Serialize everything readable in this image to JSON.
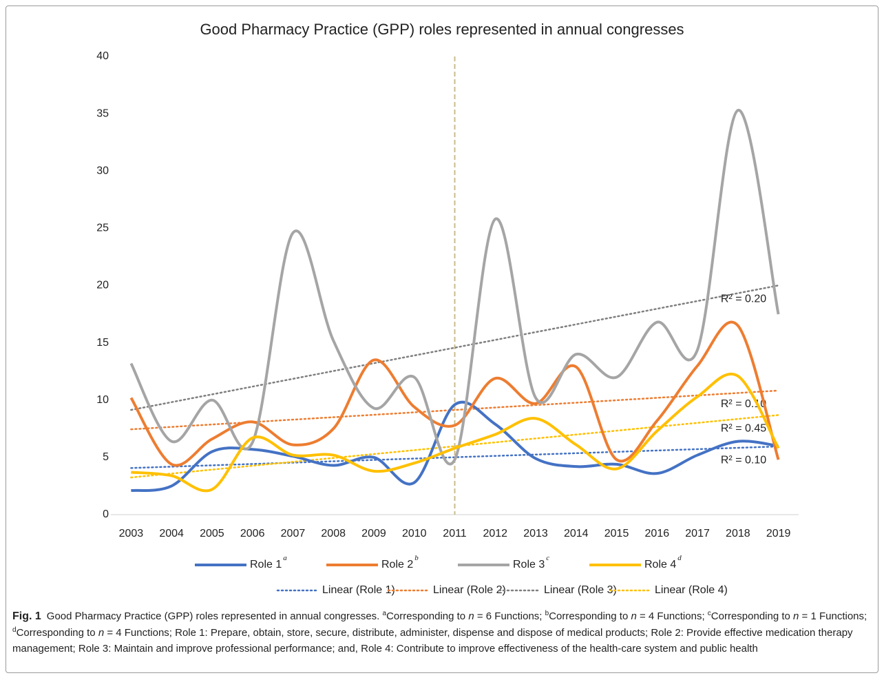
{
  "chart_data": {
    "type": "line",
    "title": "Good Pharmacy Practice (GPP) roles represented in annual congresses",
    "categories": [
      "2003",
      "2004",
      "2005",
      "2006",
      "2007",
      "2008",
      "2009",
      "2010",
      "2011",
      "2012",
      "2013",
      "2014",
      "2015",
      "2016",
      "2017",
      "2018",
      "2019"
    ],
    "ylim": [
      0,
      40
    ],
    "yticks": [
      0,
      5,
      10,
      15,
      20,
      25,
      30,
      35,
      40
    ],
    "grid": false,
    "smooth": true,
    "vertical_line_at": "2011",
    "vertical_line_color": "#c8bb8c",
    "series": [
      {
        "name": "Role 1",
        "superscript": "a",
        "color": "#4472c4",
        "values": [
          2.1,
          2.5,
          5.5,
          5.7,
          5.1,
          4.3,
          5.0,
          2.8,
          9.6,
          7.9,
          4.9,
          4.2,
          4.4,
          3.6,
          5.2,
          6.4,
          6.0
        ],
        "trendline": {
          "name": "Linear (Role 1)",
          "color": "#4472c4",
          "r2_label": "R² = 0.10"
        }
      },
      {
        "name": "Role 2",
        "superscript": "b",
        "color": "#ed7d31",
        "values": [
          10.2,
          4.4,
          6.6,
          8.1,
          6.1,
          7.5,
          13.5,
          9.4,
          7.8,
          11.9,
          9.7,
          12.9,
          4.8,
          8.2,
          13.0,
          16.5,
          4.8
        ],
        "trendline": {
          "name": "Linear (Role 2)",
          "color": "#ed7d31",
          "r2_label": "R² = 0.10"
        }
      },
      {
        "name": "Role 3",
        "superscript": "c",
        "color": "#a5a5a5",
        "values": [
          13.2,
          6.4,
          10.0,
          6.3,
          24.6,
          15.2,
          9.3,
          12.0,
          4.8,
          25.8,
          10.2,
          14.0,
          12.0,
          16.8,
          14.4,
          35.3,
          17.5
        ],
        "trendline": {
          "name": "Linear (Role 3)",
          "color": "#7f7f7f",
          "r2_label": "R² = 0.20"
        }
      },
      {
        "name": "Role 4",
        "superscript": "d",
        "color": "#ffc000",
        "values": [
          3.7,
          3.4,
          2.2,
          6.7,
          5.2,
          5.2,
          3.8,
          4.5,
          5.8,
          7.0,
          8.4,
          6.1,
          4.0,
          7.3,
          10.3,
          12.1,
          5.8
        ],
        "trendline": {
          "name": "Linear (Role 4)",
          "color": "#ffc000",
          "r2_label": "R² = 0.45"
        }
      }
    ]
  },
  "caption": {
    "label": "Fig. 1",
    "segments": [
      {
        "text": "Good Pharmacy Practice (GPP) roles represented in annual congresses. ",
        "style": "normal"
      },
      {
        "text": "a",
        "style": "sup"
      },
      {
        "text": "Corresponding to ",
        "style": "normal"
      },
      {
        "text": "n",
        "style": "italic"
      },
      {
        "text": " = 6 Functions; ",
        "style": "normal"
      },
      {
        "text": "b",
        "style": "sup"
      },
      {
        "text": "Corresponding to ",
        "style": "normal"
      },
      {
        "text": "n",
        "style": "italic"
      },
      {
        "text": " = 4 Functions; ",
        "style": "normal"
      },
      {
        "text": "c",
        "style": "sup"
      },
      {
        "text": "Corresponding to ",
        "style": "normal"
      },
      {
        "text": "n",
        "style": "italic"
      },
      {
        "text": " = 1 Functions; ",
        "style": "normal"
      },
      {
        "text": "d",
        "style": "sup"
      },
      {
        "text": "Corresponding to ",
        "style": "normal"
      },
      {
        "text": "n",
        "style": "italic"
      },
      {
        "text": " = 4 Functions; Role 1: Prepare, obtain, store, secure, distribute, administer, dispense and dispose of medical products; Role 2: Provide effective medication therapy management; Role 3: Maintain and improve professional performance; and, Role 4: Contribute to improve effectiveness of the health-care system and public health",
        "style": "normal"
      }
    ]
  }
}
